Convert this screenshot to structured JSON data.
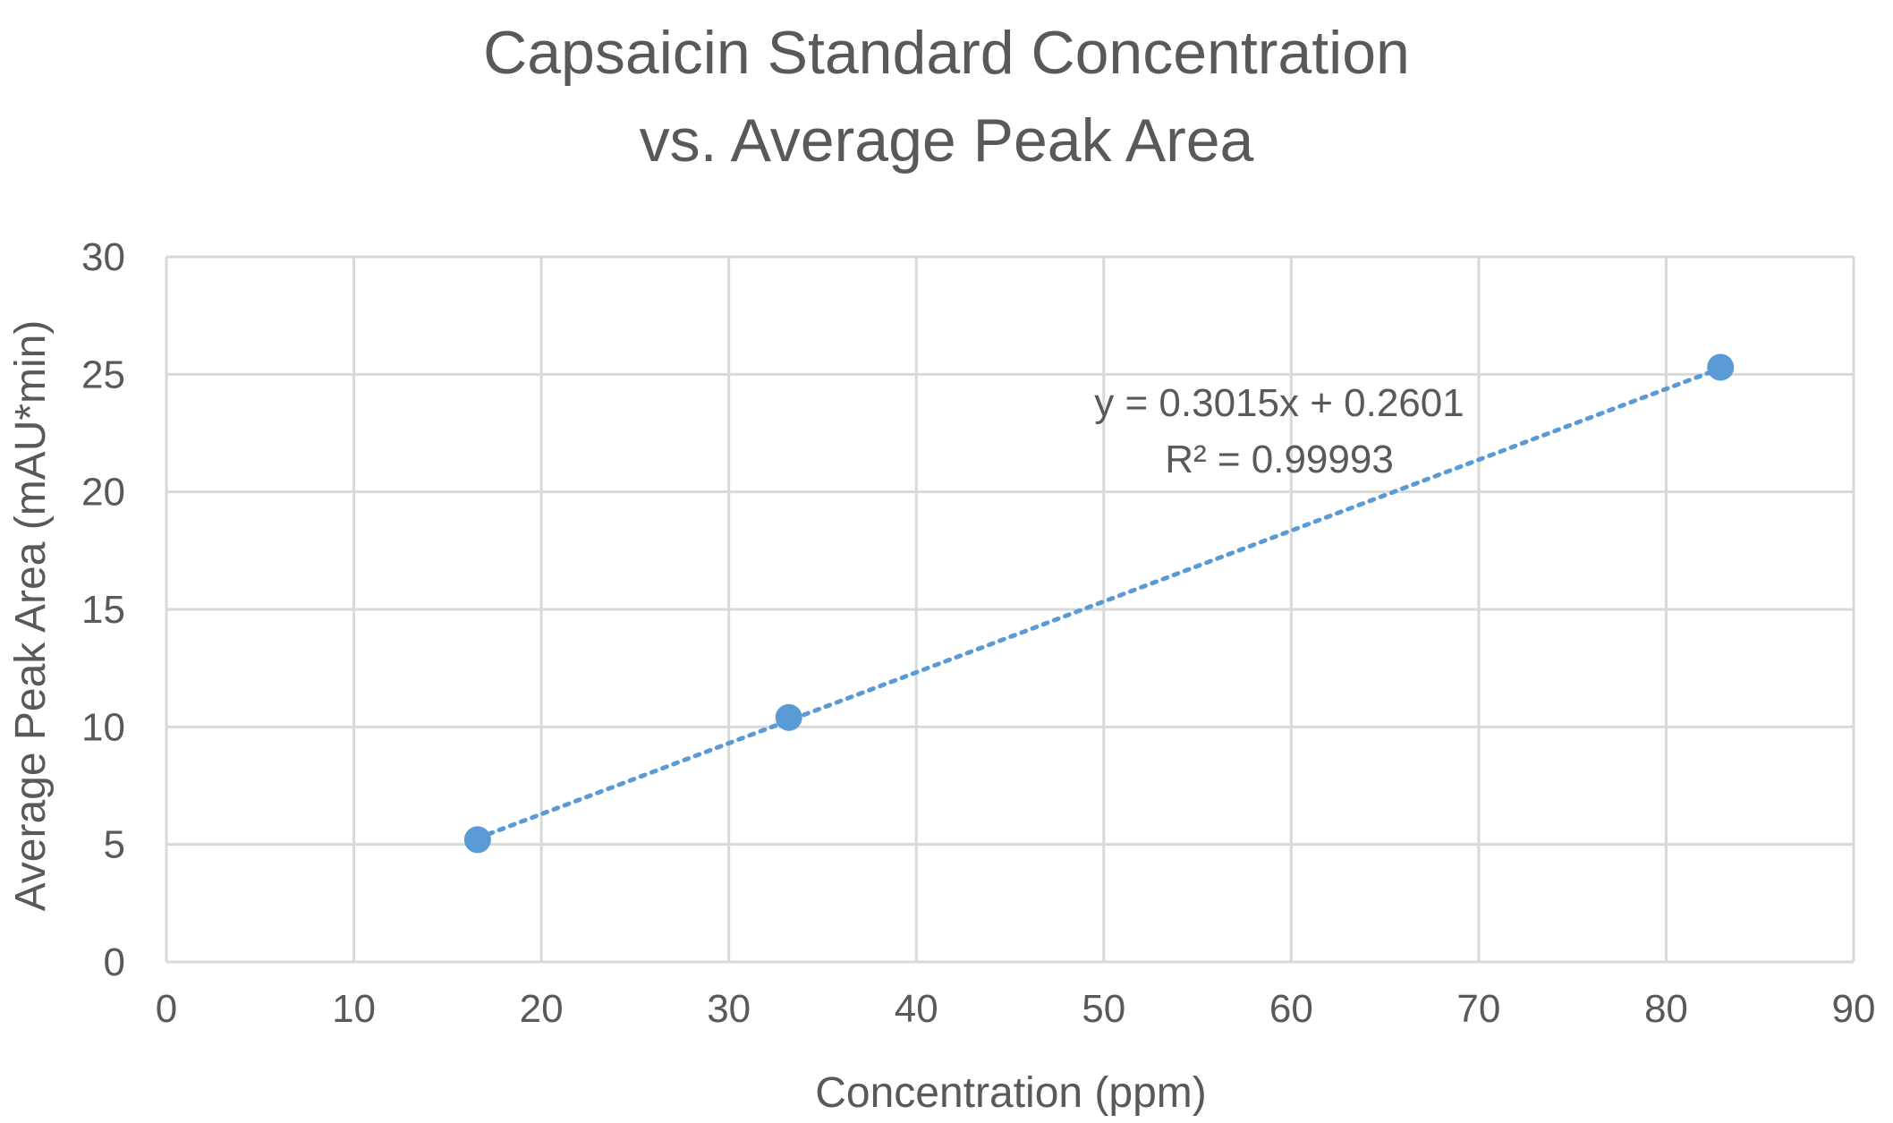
{
  "colors": {
    "series": "#5b9bd5",
    "grid": "#d9d9d9",
    "text": "#595959",
    "background": "#ffffff"
  },
  "chart_data": {
    "type": "scatter",
    "title": [
      "Capsaicin Standard Concentration",
      "vs. Average Peak Area"
    ],
    "xlabel": "Concentration (ppm)",
    "ylabel": "Average Peak Area (mAU*min)",
    "xlim": [
      0,
      90
    ],
    "ylim": [
      0,
      30
    ],
    "x_ticks": [
      "0",
      "10",
      "20",
      "30",
      "40",
      "50",
      "60",
      "70",
      "80",
      "90"
    ],
    "y_ticks": [
      "0",
      "5",
      "10",
      "15",
      "20",
      "25",
      "30"
    ],
    "grid": true,
    "legend": "none",
    "series": [
      {
        "points": [
          {
            "x": 16.6,
            "y": 5.2
          },
          {
            "x": 33.2,
            "y": 10.4
          },
          {
            "x": 82.9,
            "y": 25.3
          }
        ]
      }
    ],
    "trendline": {
      "type": "linear",
      "style": "dotted",
      "slope": 0.3015,
      "intercept": 0.2601,
      "x_range": [
        16.6,
        82.9
      ],
      "equation": "y = 0.3015x + 0.2601",
      "r_squared": "R² = 0.99993"
    }
  }
}
